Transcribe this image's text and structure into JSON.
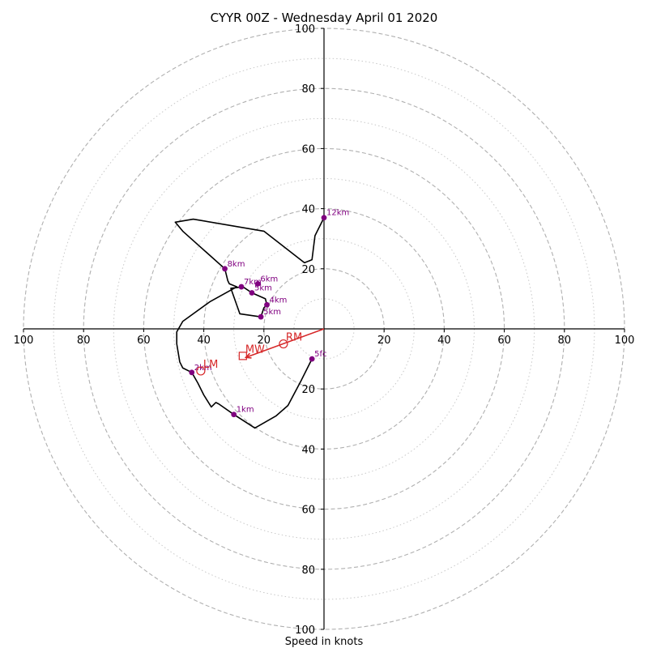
{
  "chart_data": {
    "type": "hodograph",
    "title": "CYYR 00Z - Wednesday April 01 2020",
    "xlabel": "Speed in knots",
    "ylabel": "",
    "range": [
      -100,
      100
    ],
    "major_rings": [
      20,
      40,
      60,
      80,
      100
    ],
    "minor_rings": [
      10,
      30,
      50,
      70,
      90
    ],
    "x_tick_labels": [
      "100",
      "80",
      "60",
      "40",
      "20",
      "20",
      "40",
      "60",
      "80",
      "100"
    ],
    "x_tick_values": [
      -100,
      -80,
      -60,
      -40,
      -20,
      20,
      40,
      60,
      80,
      100
    ],
    "y_tick_labels": [
      "100",
      "80",
      "60",
      "40",
      "20",
      "20",
      "40",
      "60",
      "80",
      "100"
    ],
    "y_tick_values": [
      100,
      80,
      60,
      40,
      20,
      -20,
      -40,
      -60,
      -80,
      -100
    ],
    "grid": true,
    "colors": {
      "trace": "#000000",
      "height_marker": "#800080",
      "motion": "#d62728",
      "major_ring": "#b0b0b0",
      "minor_ring": "#c8c8c8"
    },
    "trace": [
      [
        -4,
        -10
      ],
      [
        -7.5,
        -17
      ],
      [
        -12,
        -25.5
      ],
      [
        -16,
        -29
      ],
      [
        -23,
        -33
      ],
      [
        -30,
        -28.5
      ],
      [
        -35,
        -25
      ],
      [
        -36,
        -24.5
      ],
      [
        -37.5,
        -26
      ],
      [
        -40,
        -22
      ],
      [
        -42,
        -18
      ],
      [
        -44,
        -14.5
      ],
      [
        -47,
        -13
      ],
      [
        -48,
        -11
      ],
      [
        -49,
        -5
      ],
      [
        -49,
        -1
      ],
      [
        -47,
        2.5
      ],
      [
        -38,
        9
      ],
      [
        -29,
        14
      ],
      [
        -31.5,
        15
      ],
      [
        -32,
        16
      ],
      [
        -33,
        20
      ],
      [
        -47,
        32.5
      ],
      [
        -49.5,
        35.5
      ],
      [
        -43.5,
        36.5
      ],
      [
        -20,
        32.5
      ],
      [
        -6.5,
        22
      ],
      [
        -4,
        23
      ],
      [
        -3,
        31
      ],
      [
        0,
        37
      ]
    ],
    "trace_tail": [
      [
        -27,
        14
      ],
      [
        -31,
        13.5
      ],
      [
        -28,
        5
      ],
      [
        -21,
        4
      ],
      [
        -20,
        7
      ],
      [
        -19,
        8
      ],
      [
        -19.5,
        10
      ],
      [
        -24,
        12
      ],
      [
        -27,
        14
      ]
    ],
    "heights": [
      {
        "label": "5fc",
        "u": -4,
        "v": -10
      },
      {
        "label": "1km",
        "u": -30,
        "v": -28.5
      },
      {
        "label": "2km",
        "u": -44,
        "v": -14.5
      },
      {
        "label": "4km",
        "u": -19,
        "v": 8
      },
      {
        "label": "5km",
        "u": -21,
        "v": 4
      },
      {
        "label": "6km",
        "u": -22,
        "v": 15
      },
      {
        "label": "5km",
        "u": -24,
        "v": 12
      },
      {
        "label": "7km",
        "u": -27.5,
        "v": 14
      },
      {
        "label": "8km",
        "u": -33,
        "v": 20
      },
      {
        "label": "12km",
        "u": 0,
        "v": 37
      }
    ],
    "storm_motion": [
      {
        "label": "RM",
        "u": -13.5,
        "v": -5,
        "marker": "circle"
      },
      {
        "label": "LM",
        "u": -41,
        "v": -14,
        "marker": "circle"
      },
      {
        "label": "MW",
        "u": -27,
        "v": -9,
        "marker": "square"
      }
    ],
    "shear_vector": {
      "from": [
        0,
        0
      ],
      "to": [
        -26,
        -9.5
      ]
    }
  }
}
